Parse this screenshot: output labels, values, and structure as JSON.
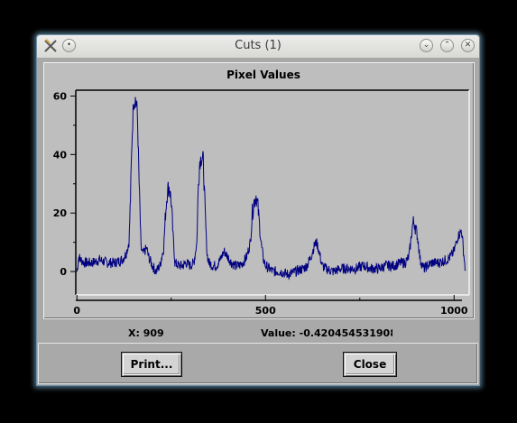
{
  "window": {
    "title": "Cuts (1)",
    "minimize_symbol": "⌄",
    "maximize_symbol": "⌃",
    "close_symbol": "✕",
    "menu_symbol": "•"
  },
  "readout": {
    "x_text": "X: 909",
    "value_text": "Value: -0.42045453190​8("
  },
  "buttons": {
    "print_label": "Print...",
    "close_label": "Close"
  },
  "colors": {
    "line": "#000080",
    "plot_bg": "#bebebe",
    "window_bg": "#a9a9a9"
  },
  "chart_data": {
    "type": "line",
    "title": "Pixel Values",
    "xlabel": "",
    "ylabel": "",
    "xlim": [
      -3,
      1040
    ],
    "ylim": [
      -8,
      62
    ],
    "x_ticks": [
      0,
      500,
      1000
    ],
    "x_tick_labels": [
      "0",
      "500",
      "1000"
    ],
    "y_ticks": [
      0,
      20,
      40,
      60
    ],
    "y_tick_labels": [
      "0",
      "20",
      "40",
      "60"
    ],
    "series": [
      {
        "x": [
          0,
          5,
          10,
          20,
          40,
          60,
          80,
          100,
          120,
          130,
          138,
          142,
          146,
          150,
          155,
          160,
          165,
          170,
          175,
          180,
          185,
          190,
          200,
          210,
          220,
          230,
          235,
          240,
          245,
          250,
          255,
          260,
          270,
          280,
          290,
          300,
          310,
          318,
          322,
          326,
          330,
          335,
          340,
          345,
          350,
          360,
          370,
          380,
          390,
          400,
          410,
          420,
          430,
          440,
          450,
          460,
          465,
          470,
          475,
          480,
          485,
          490,
          495,
          500,
          510,
          520,
          540,
          560,
          580,
          600,
          610,
          620,
          630,
          635,
          640,
          645,
          650,
          660,
          680,
          700,
          720,
          740,
          760,
          780,
          800,
          820,
          840,
          860,
          870,
          880,
          885,
          890,
          895,
          900,
          905,
          910,
          920,
          930,
          940,
          960,
          980,
          990,
          1000,
          1010,
          1020,
          1030
        ],
        "y": [
          0,
          5,
          4,
          3,
          3,
          4,
          3,
          3,
          4,
          6,
          10,
          25,
          45,
          58,
          59,
          55,
          30,
          8,
          6,
          7,
          8,
          5,
          2,
          0,
          2,
          8,
          20,
          28,
          29,
          24,
          12,
          3,
          2,
          2,
          3,
          2,
          3,
          10,
          30,
          38,
          39,
          38,
          20,
          6,
          3,
          2,
          2,
          4,
          7,
          5,
          3,
          2,
          2,
          3,
          5,
          10,
          20,
          24,
          26,
          22,
          14,
          8,
          4,
          2,
          1,
          0,
          0,
          -1,
          0,
          1,
          2,
          5,
          9,
          10,
          8,
          5,
          2,
          1,
          0,
          1,
          1,
          1,
          2,
          1,
          1,
          2,
          2,
          3,
          3,
          5,
          10,
          16,
          17,
          14,
          10,
          4,
          1,
          2,
          3,
          3,
          4,
          5,
          7,
          12,
          14,
          0
        ]
      }
    ]
  }
}
